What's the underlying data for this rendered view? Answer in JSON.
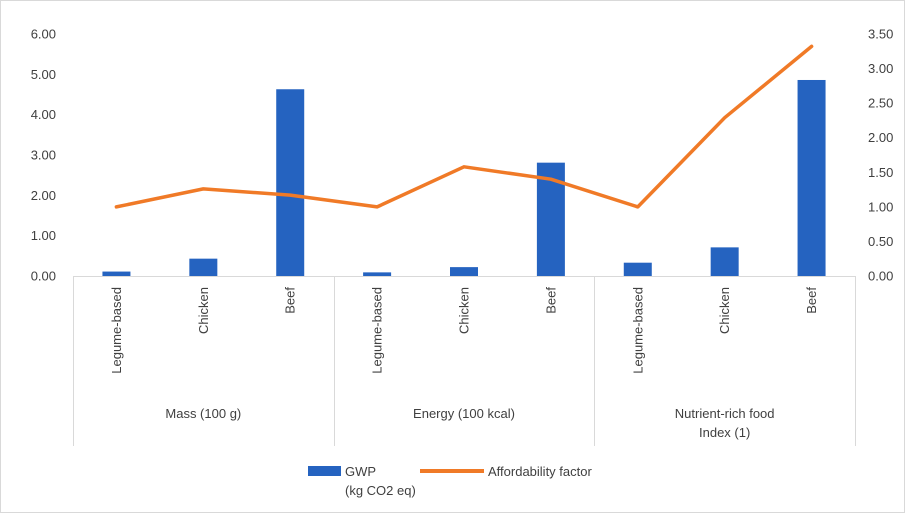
{
  "chart_data": {
    "type": "bar",
    "groups": [
      "Mass (100 g)",
      "Energy (100 kcal)",
      [
        "Nutrient-rich food",
        "Index (1)"
      ]
    ],
    "categories": [
      "Legume-based",
      "Chicken",
      "Beef",
      "Legume-based",
      "Chicken",
      "Beef",
      "Legume-based",
      "Chicken",
      "Beef"
    ],
    "y_left": {
      "ylim": [
        0,
        6
      ],
      "ticks": [
        "0.00",
        "1.00",
        "2.00",
        "3.00",
        "4.00",
        "5.00",
        "6.00"
      ]
    },
    "y_right": {
      "ylim": [
        0,
        3.5
      ],
      "ticks": [
        "0.00",
        "0.50",
        "1.00",
        "1.50",
        "2.00",
        "2.50",
        "3.00",
        "3.50"
      ]
    },
    "series": [
      {
        "name": [
          "GWP",
          "(kg CO2 eq)"
        ],
        "type": "bar",
        "axis": "left",
        "color": "#2563c0",
        "values": [
          0.11,
          0.43,
          4.63,
          0.09,
          0.22,
          2.81,
          0.33,
          0.71,
          4.86
        ]
      },
      {
        "name": "Affordability factor",
        "type": "line",
        "axis": "right",
        "color": "#f07a27",
        "values": [
          1.0,
          1.26,
          1.17,
          1.0,
          1.58,
          1.4,
          1.0,
          2.29,
          3.32
        ]
      }
    ],
    "grid": false,
    "legend": "bottom"
  }
}
